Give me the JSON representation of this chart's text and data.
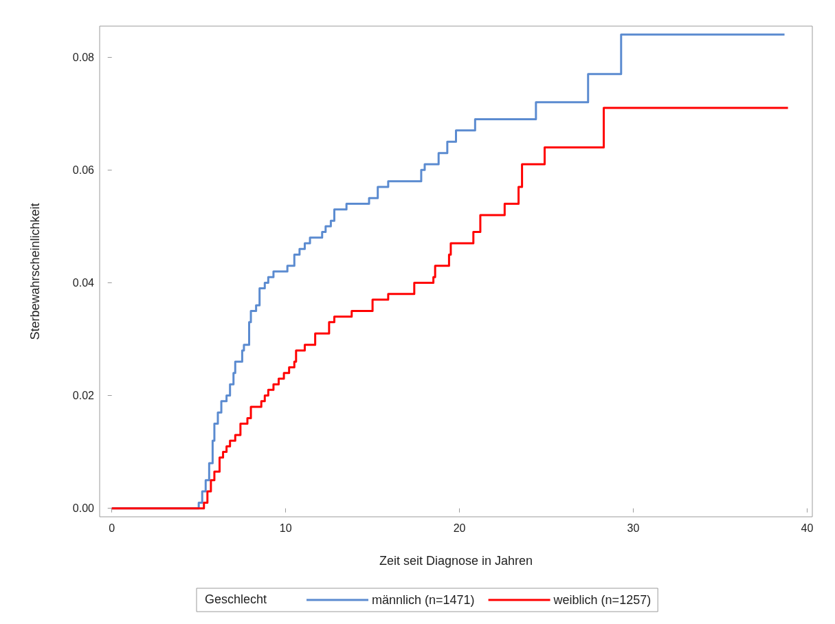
{
  "chart_data": {
    "type": "step",
    "xlabel": "Zeit seit Diagnose in Jahren",
    "ylabel": "Sterbewahrscheinlichkeit",
    "legend_title": "Geschlecht",
    "legend": "bottom",
    "grid": false,
    "xlim": [
      -0.7,
      40.3
    ],
    "xticks": [
      0,
      10,
      20,
      30,
      40
    ],
    "ylim": [
      -0.0015,
      0.0855
    ],
    "yticks": [
      {
        "value": 0,
        "label": "0.00"
      },
      {
        "value": 0.02,
        "label": "0.02"
      },
      {
        "value": 0.04,
        "label": "0.04"
      },
      {
        "value": 0.06,
        "label": "0.06"
      },
      {
        "value": 0.08,
        "label": "0.08"
      }
    ],
    "series": [
      {
        "name": "männlich (n=1471)",
        "color": "#5b8bd0",
        "x": [
          0,
          5.0,
          5.2,
          5.4,
          5.6,
          5.8,
          5.9,
          6.1,
          6.3,
          6.6,
          6.8,
          7.0,
          7.1,
          7.5,
          7.6,
          7.9,
          8.0,
          8.3,
          8.5,
          8.8,
          9.0,
          9.3,
          10.1,
          10.5,
          10.8,
          11.1,
          11.4,
          12.1,
          12.3,
          12.6,
          12.8,
          13.5,
          14.8,
          15.3,
          15.9,
          17.8,
          18.0,
          18.8,
          19.3,
          19.8,
          20.9,
          24.4,
          27.4,
          29.3,
          38.7
        ],
        "values": [
          0,
          0.001,
          0.003,
          0.005,
          0.008,
          0.012,
          0.015,
          0.017,
          0.019,
          0.02,
          0.022,
          0.024,
          0.026,
          0.028,
          0.029,
          0.033,
          0.035,
          0.036,
          0.039,
          0.04,
          0.041,
          0.042,
          0.043,
          0.045,
          0.046,
          0.047,
          0.048,
          0.049,
          0.05,
          0.051,
          0.053,
          0.054,
          0.055,
          0.057,
          0.058,
          0.06,
          0.061,
          0.063,
          0.065,
          0.067,
          0.069,
          0.072,
          0.077,
          0.084,
          0.084
        ]
      },
      {
        "name": "weiblich (n=1257)",
        "color": "#ff0000",
        "x": [
          0,
          5.1,
          5.3,
          5.5,
          5.7,
          5.9,
          6.2,
          6.4,
          6.6,
          6.8,
          7.1,
          7.4,
          7.8,
          8.0,
          8.6,
          8.8,
          9.0,
          9.3,
          9.6,
          9.9,
          10.2,
          10.5,
          10.6,
          11.1,
          11.7,
          12.5,
          12.8,
          13.8,
          15.0,
          15.9,
          17.4,
          18.5,
          18.6,
          19.4,
          19.5,
          20.8,
          21.2,
          22.6,
          23.4,
          23.6,
          24.9,
          28.3,
          38.9
        ],
        "values": [
          0,
          0,
          0.001,
          0.003,
          0.005,
          0.0065,
          0.009,
          0.01,
          0.011,
          0.012,
          0.013,
          0.015,
          0.016,
          0.018,
          0.019,
          0.02,
          0.021,
          0.022,
          0.023,
          0.024,
          0.025,
          0.026,
          0.028,
          0.029,
          0.031,
          0.033,
          0.034,
          0.035,
          0.037,
          0.038,
          0.04,
          0.041,
          0.043,
          0.045,
          0.047,
          0.049,
          0.052,
          0.054,
          0.057,
          0.061,
          0.064,
          0.071,
          0.071
        ]
      }
    ]
  }
}
